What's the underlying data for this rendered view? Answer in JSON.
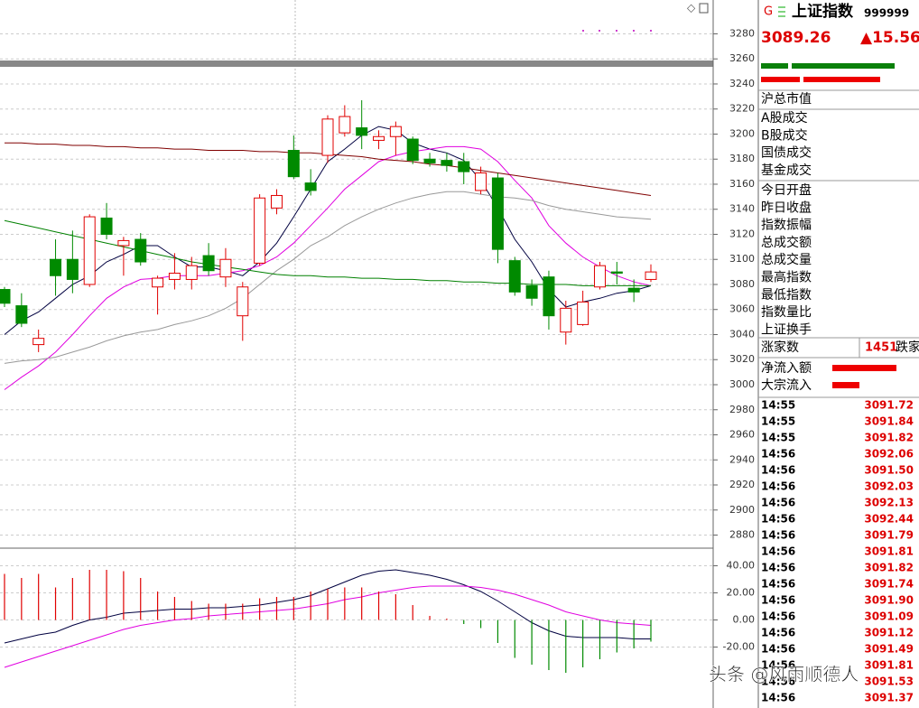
{
  "chart_data": [
    {
      "type": "candlestick",
      "up_color": "#e00000",
      "down_color": "#008a00",
      "open": [
        3076,
        3063,
        3032,
        3100,
        3100,
        3080,
        3133,
        3111,
        3116,
        3078,
        3084,
        3084,
        3103,
        3086,
        3055,
        3097,
        3141,
        3187,
        3161,
        3183,
        3201,
        3205,
        3195,
        3198,
        3196,
        3180,
        3179,
        3178,
        3155,
        3165,
        3099,
        3079,
        3086,
        3042,
        3048,
        3078,
        3090,
        3077,
        3084
      ],
      "high": [
        3078,
        3073,
        3044,
        3116,
        3123,
        3136,
        3145,
        3118,
        3121,
        3087,
        3105,
        3102,
        3113,
        3109,
        3082,
        3152,
        3156,
        3199,
        3172,
        3215,
        3223,
        3227,
        3203,
        3210,
        3198,
        3185,
        3185,
        3185,
        3174,
        3169,
        3102,
        3084,
        3091,
        3067,
        3075,
        3098,
        3098,
        3084,
        3096
      ],
      "low": [
        3062,
        3046,
        3026,
        3071,
        3073,
        3078,
        3116,
        3087,
        3095,
        3056,
        3076,
        3076,
        3087,
        3078,
        3035,
        3095,
        3136,
        3164,
        3151,
        3177,
        3198,
        3188,
        3188,
        3183,
        3176,
        3174,
        3170,
        3160,
        3152,
        3097,
        3071,
        3063,
        3044,
        3032,
        3047,
        3076,
        3080,
        3066,
        3082
      ],
      "close": [
        3065,
        3049,
        3037,
        3087,
        3084,
        3134,
        3120,
        3115,
        3098,
        3085,
        3089,
        3095,
        3091,
        3100,
        3078,
        3149,
        3151,
        3166,
        3155,
        3212,
        3214,
        3199,
        3198,
        3206,
        3179,
        3177,
        3175,
        3170,
        3169,
        3108,
        3074,
        3069,
        3055,
        3061,
        3066,
        3095,
        3089,
        3074,
        3090
      ],
      "lines": [
        {
          "color": "#000040",
          "values": [
            3040,
            3051,
            3058,
            3069,
            3080,
            3087,
            3098,
            3104,
            3111,
            3111,
            3102,
            3094,
            3094,
            3091,
            3087,
            3098,
            3113,
            3134,
            3156,
            3178,
            3188,
            3199,
            3206,
            3203,
            3193,
            3188,
            3185,
            3179,
            3163,
            3141,
            3116,
            3098,
            3076,
            3062,
            3066,
            3069,
            3073,
            3075,
            3079
          ]
        },
        {
          "color": "#e000e0",
          "values": [
            2996,
            3006,
            3015,
            3026,
            3040,
            3055,
            3069,
            3078,
            3084,
            3085,
            3087,
            3087,
            3087,
            3089,
            3091,
            3095,
            3102,
            3113,
            3127,
            3141,
            3156,
            3167,
            3178,
            3183,
            3186,
            3188,
            3190,
            3190,
            3188,
            3178,
            3163,
            3149,
            3127,
            3113,
            3102,
            3094,
            3087,
            3082,
            3079
          ]
        },
        {
          "color": "#999999",
          "values": [
            3017,
            3019,
            3020,
            3022,
            3026,
            3030,
            3035,
            3039,
            3042,
            3044,
            3048,
            3051,
            3055,
            3061,
            3069,
            3080,
            3091,
            3100,
            3111,
            3118,
            3127,
            3134,
            3140,
            3145,
            3149,
            3152,
            3154,
            3154,
            3152,
            3150,
            3149,
            3147,
            3143,
            3140,
            3138,
            3136,
            3134,
            3133,
            3132
          ]
        },
        {
          "color": "#800000",
          "values": [
            3193,
            3193,
            3192,
            3192,
            3191,
            3191,
            3190,
            3190,
            3189,
            3189,
            3188,
            3188,
            3187,
            3187,
            3187,
            3186,
            3186,
            3185,
            3185,
            3184,
            3183,
            3182,
            3180,
            3179,
            3178,
            3176,
            3175,
            3173,
            3171,
            3169,
            3167,
            3165,
            3163,
            3161,
            3159,
            3157,
            3155,
            3153,
            3151
          ]
        },
        {
          "color": "#008000",
          "values": [
            3131,
            3128,
            3125,
            3122,
            3119,
            3116,
            3113,
            3110,
            3107,
            3104,
            3101,
            3098,
            3096,
            3094,
            3092,
            3090,
            3088,
            3087,
            3087,
            3086,
            3086,
            3085,
            3085,
            3084,
            3084,
            3083,
            3083,
            3082,
            3082,
            3081,
            3081,
            3080,
            3080,
            3080,
            3079,
            3079,
            3079,
            3079,
            3079
          ]
        }
      ],
      "ylim": [
        2871,
        3307
      ],
      "yticks": [
        2880,
        2900,
        2920,
        2940,
        2960,
        2980,
        3000,
        3020,
        3040,
        3060,
        3080,
        3100,
        3120,
        3140,
        3160,
        3180,
        3200,
        3220,
        3240,
        3260,
        3280
      ],
      "grid": true
    },
    {
      "type": "bar",
      "up_color": "#e00000",
      "down_color": "#008a00",
      "values": [
        34,
        31,
        34,
        24,
        31,
        37,
        37,
        36,
        31,
        21,
        17,
        14,
        12,
        12,
        12,
        16,
        17,
        17,
        21,
        23,
        24,
        24,
        21,
        19,
        11,
        3,
        1,
        -3,
        -6,
        -17,
        -28,
        -33,
        -37,
        -39,
        -35,
        -29,
        -24,
        -21,
        -16
      ],
      "lines": [
        {
          "color": "#000040",
          "values": [
            -17,
            -14,
            -11,
            -9,
            -4,
            0,
            2,
            5,
            6,
            7,
            8,
            8,
            9,
            9,
            10,
            11,
            13,
            15,
            18,
            23,
            28,
            33,
            36,
            37,
            35,
            33,
            30,
            26,
            21,
            14,
            6,
            -2,
            -8,
            -12,
            -13,
            -13,
            -13,
            -14,
            -14
          ]
        },
        {
          "color": "#e000e0",
          "values": [
            -35,
            -31,
            -27,
            -23,
            -19,
            -15,
            -11,
            -7,
            -4,
            -2,
            0,
            1,
            3,
            4,
            5,
            6,
            7,
            8,
            10,
            12,
            15,
            17,
            20,
            22,
            24,
            25,
            25,
            25,
            24,
            22,
            19,
            15,
            11,
            6,
            3,
            0,
            -2,
            -3,
            -4
          ]
        }
      ],
      "ylim": [
        -65,
        53
      ],
      "yticks": [
        {
          "value": 40,
          "label": "40.00"
        },
        {
          "value": 20,
          "label": "20.00"
        },
        {
          "value": 0,
          "label": "0.00"
        },
        {
          "value": -20,
          "label": "-20.00"
        }
      ],
      "grid": true
    }
  ],
  "quote_panel": {
    "market_icon": "G",
    "name": "上证指数",
    "code": "999999",
    "price": "3089.26",
    "change": "▲15.56",
    "fields": [
      "沪总市值",
      "A股成交",
      "B股成交",
      "国债成交",
      "基金成交",
      "今日开盘",
      "昨日收盘",
      "指数振幅",
      "总成交额",
      "总成交量",
      "最高指数",
      "最低指数",
      "指数量比",
      "上证换手"
    ],
    "advancers_label": "涨家数",
    "advancers": "1451",
    "decliners_label": "跌家",
    "flow_fields": [
      "净流入额",
      "大宗流入"
    ],
    "ticks": [
      [
        "14:55",
        "3091.72"
      ],
      [
        "14:55",
        "3091.84"
      ],
      [
        "14:55",
        "3091.82"
      ],
      [
        "14:56",
        "3092.06"
      ],
      [
        "14:56",
        "3091.50"
      ],
      [
        "14:56",
        "3092.03"
      ],
      [
        "14:56",
        "3092.13"
      ],
      [
        "14:56",
        "3092.44"
      ],
      [
        "14:56",
        "3091.79"
      ],
      [
        "14:56",
        "3091.81"
      ],
      [
        "14:56",
        "3091.82"
      ],
      [
        "14:56",
        "3091.74"
      ],
      [
        "14:56",
        "3091.90"
      ],
      [
        "14:56",
        "3091.09"
      ],
      [
        "14:56",
        "3091.12"
      ],
      [
        "14:56",
        "3091.49"
      ],
      [
        "14:56",
        "3091.81"
      ],
      [
        "14:56",
        "3091.53"
      ],
      [
        "14:56",
        "3091.37"
      ]
    ]
  },
  "watermark": "头条 @风雨顺德人"
}
